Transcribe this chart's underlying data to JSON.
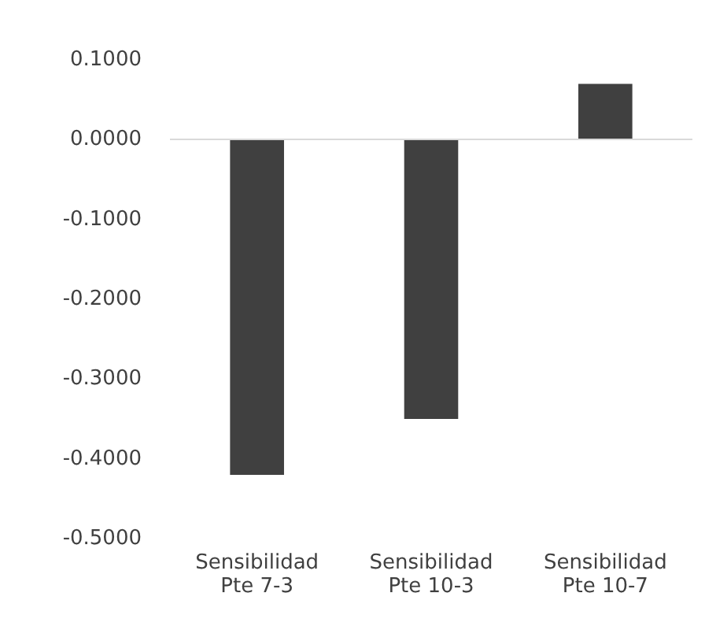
{
  "chart_data": {
    "type": "bar",
    "categories": [
      "Sensibilidad\nPte 7-3",
      "Sensibilidad\nPte 10-3",
      "Sensibilidad\nPte 10-7"
    ],
    "values": [
      -0.42,
      -0.35,
      0.07
    ],
    "color": "#404040",
    "ylim": [
      -0.5,
      0.1
    ],
    "yticks": [
      {
        "value": -0.5,
        "label": "-0.5000"
      },
      {
        "value": -0.4,
        "label": "-0.4000"
      },
      {
        "value": -0.3,
        "label": "-0.3000"
      },
      {
        "value": -0.2,
        "label": "-0.2000"
      },
      {
        "value": -0.1,
        "label": "-0.1000"
      },
      {
        "value": 0,
        "label": "0.0000"
      },
      {
        "value": 0.1,
        "label": "0.1000"
      }
    ],
    "ref_lines": [
      {
        "axis": "y",
        "value": 0,
        "color": "#d9d9d9"
      }
    ],
    "grid": false
  }
}
